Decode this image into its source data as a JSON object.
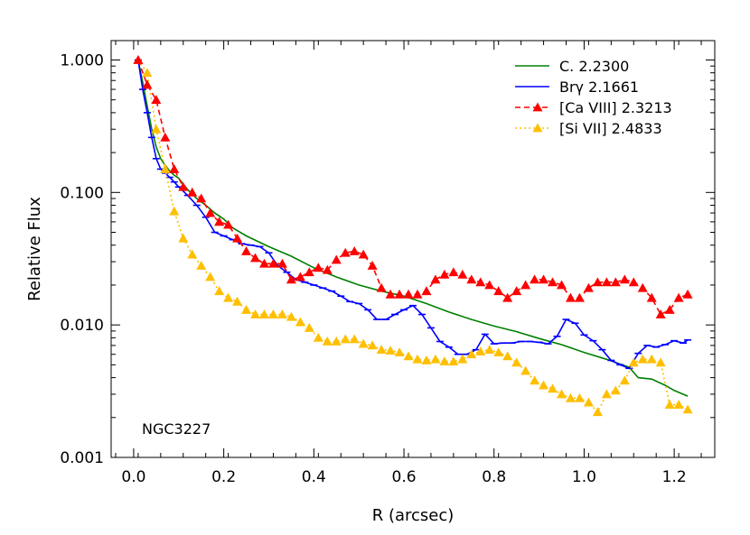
{
  "chart_data": {
    "type": "line",
    "xlabel": "R (arcsec)",
    "ylabel": "Relative Flux",
    "annotation": "NGC3227",
    "xlim": [
      -0.05,
      1.29
    ],
    "ylim": [
      0.001,
      1.4
    ],
    "yscale": "log",
    "x_ticks": [
      {
        "value": 0.0,
        "label": "0.0"
      },
      {
        "value": 0.2,
        "label": "0.2"
      },
      {
        "value": 0.4,
        "label": "0.4"
      },
      {
        "value": 0.6,
        "label": "0.6"
      },
      {
        "value": 0.8,
        "label": "0.8"
      },
      {
        "value": 1.0,
        "label": "1.0"
      },
      {
        "value": 1.2,
        "label": "1.2"
      }
    ],
    "y_ticks": [
      {
        "value": 1.0,
        "label": "1.000"
      },
      {
        "value": 0.1,
        "label": "0.100"
      },
      {
        "value": 0.01,
        "label": "0.010"
      },
      {
        "value": 0.001,
        "label": "0.001"
      }
    ],
    "grid": false,
    "legend_position": "top-right",
    "series": [
      {
        "name": "C. 2.2300",
        "color": "#008000",
        "style": "solid",
        "marker": "none",
        "x": [
          0.01,
          0.02,
          0.03,
          0.04,
          0.05,
          0.06,
          0.07,
          0.08,
          0.09,
          0.1,
          0.12,
          0.14,
          0.16,
          0.18,
          0.2,
          0.22,
          0.25,
          0.28,
          0.3,
          0.35,
          0.4,
          0.45,
          0.5,
          0.55,
          0.6,
          0.65,
          0.7,
          0.75,
          0.8,
          0.85,
          0.9,
          0.95,
          1.0,
          1.05,
          1.1,
          1.12,
          1.15,
          1.18,
          1.2,
          1.23
        ],
        "y": [
          1.0,
          0.68,
          0.45,
          0.3,
          0.22,
          0.18,
          0.16,
          0.145,
          0.135,
          0.128,
          0.105,
          0.09,
          0.08,
          0.07,
          0.063,
          0.054,
          0.047,
          0.042,
          0.039,
          0.033,
          0.027,
          0.023,
          0.02,
          0.018,
          0.0165,
          0.0145,
          0.0125,
          0.011,
          0.0098,
          0.0089,
          0.0079,
          0.0071,
          0.0062,
          0.0055,
          0.0048,
          0.004,
          0.0039,
          0.0035,
          0.0032,
          0.0029
        ]
      },
      {
        "name": "Brγ 2.1661",
        "color": "#0000ff",
        "style": "solid",
        "marker": "dash",
        "x": [
          0.01,
          0.02,
          0.03,
          0.04,
          0.05,
          0.06,
          0.07,
          0.08,
          0.09,
          0.1,
          0.12,
          0.14,
          0.16,
          0.18,
          0.2,
          0.22,
          0.24,
          0.26,
          0.28,
          0.3,
          0.32,
          0.34,
          0.36,
          0.38,
          0.4,
          0.42,
          0.44,
          0.46,
          0.48,
          0.5,
          0.52,
          0.54,
          0.56,
          0.58,
          0.6,
          0.62,
          0.64,
          0.66,
          0.68,
          0.7,
          0.72,
          0.74,
          0.76,
          0.78,
          0.8,
          0.82,
          0.84,
          0.86,
          0.88,
          0.9,
          0.92,
          0.94,
          0.96,
          0.98,
          1.0,
          1.02,
          1.04,
          1.06,
          1.08,
          1.1,
          1.12,
          1.14,
          1.16,
          1.18,
          1.2,
          1.22,
          1.23
        ],
        "y": [
          1.0,
          0.6,
          0.4,
          0.26,
          0.18,
          0.15,
          0.14,
          0.13,
          0.12,
          0.11,
          0.095,
          0.08,
          0.065,
          0.05,
          0.047,
          0.044,
          0.041,
          0.04,
          0.039,
          0.035,
          0.028,
          0.025,
          0.022,
          0.021,
          0.02,
          0.019,
          0.018,
          0.0165,
          0.015,
          0.0145,
          0.013,
          0.011,
          0.011,
          0.012,
          0.013,
          0.014,
          0.012,
          0.0095,
          0.0075,
          0.0068,
          0.006,
          0.006,
          0.0065,
          0.0085,
          0.0072,
          0.0073,
          0.0073,
          0.0075,
          0.0075,
          0.0074,
          0.0072,
          0.0082,
          0.011,
          0.0103,
          0.0084,
          0.0076,
          0.0065,
          0.0054,
          0.005,
          0.0047,
          0.0061,
          0.007,
          0.0068,
          0.0071,
          0.0076,
          0.0073,
          0.0077
        ]
      },
      {
        "name": "[Ca VIII] 2.3213",
        "color": "#ff0000",
        "style": "dashed",
        "marker": "triangle",
        "x": [
          0.01,
          0.03,
          0.05,
          0.07,
          0.09,
          0.11,
          0.13,
          0.15,
          0.17,
          0.19,
          0.21,
          0.23,
          0.25,
          0.27,
          0.29,
          0.31,
          0.33,
          0.35,
          0.37,
          0.39,
          0.41,
          0.43,
          0.45,
          0.47,
          0.49,
          0.51,
          0.53,
          0.55,
          0.57,
          0.59,
          0.61,
          0.63,
          0.65,
          0.67,
          0.69,
          0.71,
          0.73,
          0.75,
          0.77,
          0.79,
          0.81,
          0.83,
          0.85,
          0.87,
          0.89,
          0.91,
          0.93,
          0.95,
          0.97,
          0.99,
          1.01,
          1.03,
          1.05,
          1.07,
          1.09,
          1.11,
          1.13,
          1.15,
          1.17,
          1.19,
          1.21,
          1.23
        ],
        "y": [
          1.0,
          0.65,
          0.5,
          0.26,
          0.15,
          0.11,
          0.1,
          0.09,
          0.07,
          0.06,
          0.057,
          0.045,
          0.036,
          0.032,
          0.029,
          0.029,
          0.029,
          0.022,
          0.023,
          0.025,
          0.027,
          0.026,
          0.031,
          0.035,
          0.036,
          0.034,
          0.028,
          0.019,
          0.017,
          0.017,
          0.017,
          0.017,
          0.018,
          0.022,
          0.024,
          0.025,
          0.024,
          0.022,
          0.021,
          0.02,
          0.018,
          0.016,
          0.018,
          0.02,
          0.022,
          0.022,
          0.021,
          0.02,
          0.016,
          0.016,
          0.019,
          0.021,
          0.021,
          0.021,
          0.022,
          0.021,
          0.019,
          0.016,
          0.012,
          0.013,
          0.016,
          0.017
        ]
      },
      {
        "name": "[Si VII] 2.4833",
        "color": "#ffbf00",
        "style": "dotted",
        "marker": "triangle",
        "x": [
          0.01,
          0.03,
          0.05,
          0.07,
          0.09,
          0.11,
          0.13,
          0.15,
          0.17,
          0.19,
          0.21,
          0.23,
          0.25,
          0.27,
          0.29,
          0.31,
          0.33,
          0.35,
          0.37,
          0.39,
          0.41,
          0.43,
          0.45,
          0.47,
          0.49,
          0.51,
          0.53,
          0.55,
          0.57,
          0.59,
          0.61,
          0.63,
          0.65,
          0.67,
          0.69,
          0.71,
          0.73,
          0.75,
          0.77,
          0.79,
          0.81,
          0.83,
          0.85,
          0.87,
          0.89,
          0.91,
          0.93,
          0.95,
          0.97,
          0.99,
          1.01,
          1.03,
          1.05,
          1.07,
          1.09,
          1.11,
          1.13,
          1.15,
          1.17,
          1.19,
          1.21,
          1.23
        ],
        "y": [
          1.0,
          0.8,
          0.3,
          0.15,
          0.072,
          0.045,
          0.034,
          0.028,
          0.023,
          0.018,
          0.016,
          0.015,
          0.013,
          0.012,
          0.012,
          0.012,
          0.012,
          0.0115,
          0.0105,
          0.0095,
          0.008,
          0.0075,
          0.0075,
          0.0078,
          0.0078,
          0.0072,
          0.007,
          0.0065,
          0.0064,
          0.0062,
          0.0058,
          0.0055,
          0.0054,
          0.0055,
          0.0053,
          0.0053,
          0.0055,
          0.006,
          0.0063,
          0.0065,
          0.0062,
          0.0058,
          0.0052,
          0.0045,
          0.0038,
          0.0035,
          0.0033,
          0.003,
          0.0028,
          0.0028,
          0.0026,
          0.0022,
          0.003,
          0.0032,
          0.0038,
          0.0052,
          0.0055,
          0.0055,
          0.0052,
          0.0025,
          0.0025,
          0.0023
        ]
      }
    ]
  }
}
